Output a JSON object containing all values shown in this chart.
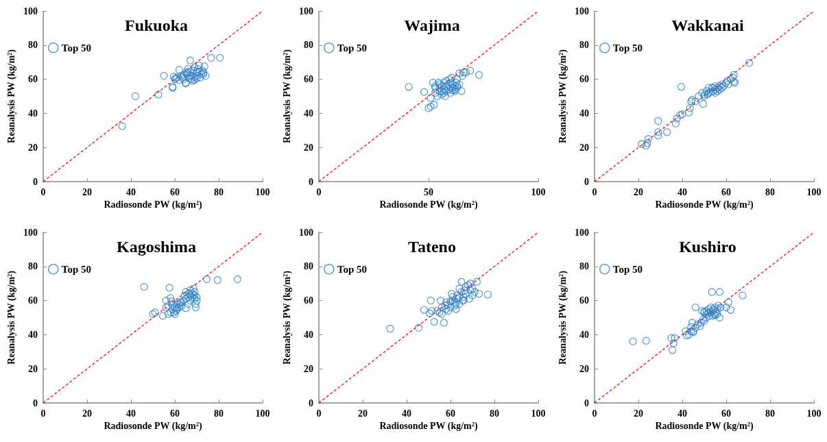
{
  "chart_data": [
    {
      "type": "scatter",
      "title": "Fukuoka",
      "xlabel": "Radiosonde PW (kg/m²)",
      "ylabel": "Reanalysis PW (kg/m²)",
      "xlim": [
        0,
        100
      ],
      "ylim": [
        0,
        100
      ],
      "xticks": [
        0,
        20,
        40,
        60,
        80,
        100
      ],
      "yticks": [
        0,
        20,
        40,
        60,
        80,
        100
      ],
      "legend": "top left",
      "marker": "circle",
      "series": [
        {
          "name": "Top 50",
          "color": "#2e7fc6",
          "x": [
            36,
            42,
            52.5,
            55,
            59,
            59,
            59.5,
            60,
            61,
            62,
            63,
            64,
            65,
            65,
            65.5,
            66,
            67,
            67,
            67.5,
            68,
            68.5,
            69,
            69,
            70,
            70,
            70.5,
            71,
            71.5,
            72,
            73,
            73,
            73.5,
            74,
            76.5,
            80.5,
            66,
            64,
            62,
            69,
            71,
            68,
            66.5,
            72.5,
            70,
            67,
            63.5,
            65,
            60.5
          ],
          "values": [
            32.5,
            50,
            51,
            62,
            55,
            55.5,
            61.5,
            60,
            61,
            65.5,
            62,
            62.5,
            58,
            57.5,
            63,
            64,
            71,
            62,
            60,
            59,
            65,
            61,
            59.5,
            62,
            64,
            66,
            68,
            61,
            63,
            64,
            63,
            67.5,
            62,
            72.5,
            72.5,
            66,
            60,
            59.5,
            67,
            64.5,
            62,
            60.5,
            65,
            60.5,
            64.5,
            61,
            64,
            60.5
          ]
        },
        {
          "type": "line",
          "color": "#ff0000",
          "line_style": "dashed",
          "marker": "none",
          "x": [
            0,
            100
          ],
          "values": [
            0,
            100
          ]
        }
      ]
    },
    {
      "type": "scatter",
      "title": "Wajima",
      "xlabel": "Radiosonde PW (kg/m²)",
      "ylabel": "Reanalysis PW (kg/m²)",
      "xlim": [
        0,
        100
      ],
      "ylim": [
        0,
        100
      ],
      "xticks": [
        0,
        50,
        100
      ],
      "yticks": [
        0,
        20,
        40,
        60,
        80,
        100
      ],
      "legend": "top left",
      "marker": "circle",
      "series": [
        {
          "name": "Top 50",
          "color": "#2e7fc6",
          "x": [
            41,
            48,
            50,
            51,
            51,
            52,
            52.5,
            53,
            53,
            54,
            54.5,
            55,
            55,
            56,
            56,
            57,
            57,
            57.5,
            58,
            58,
            59,
            59,
            60,
            60,
            60.5,
            61,
            61,
            62,
            62,
            62.5,
            63,
            63,
            64,
            64,
            65,
            65.5,
            66,
            67,
            69,
            73,
            56,
            58,
            59.5,
            57,
            55,
            53,
            61,
            62,
            63,
            60
          ],
          "values": [
            55.5,
            52.5,
            43,
            44,
            49,
            58,
            45,
            55,
            52,
            50,
            58,
            53,
            55,
            51,
            56,
            54,
            58,
            50,
            56,
            59,
            54,
            57,
            52,
            55,
            61,
            57,
            55,
            56,
            54,
            58,
            55,
            60,
            63.5,
            57,
            53,
            62,
            64,
            64,
            65,
            62.5,
            53,
            53,
            60,
            52,
            57,
            56,
            53.5,
            53,
            56,
            58
          ]
        },
        {
          "type": "line",
          "color": "#ff0000",
          "line_style": "dashed",
          "marker": "none",
          "x": [
            0,
            100
          ],
          "values": [
            0,
            100
          ]
        }
      ]
    },
    {
      "type": "scatter",
      "title": "Wakkanai",
      "xlabel": "Radiosonde PW (kg/m²)",
      "ylabel": "Reanalysis PW (kg/m²)",
      "xlim": [
        0,
        100
      ],
      "ylim": [
        0,
        100
      ],
      "xticks": [
        0,
        20,
        40,
        60,
        80,
        100
      ],
      "yticks": [
        0,
        20,
        40,
        60,
        80,
        100
      ],
      "legend": "top left",
      "marker": "circle",
      "series": [
        {
          "name": "Top 50",
          "color": "#2e7fc6",
          "x": [
            21.5,
            23.5,
            24,
            24.5,
            29,
            29,
            29,
            33,
            37,
            37.5,
            39,
            40,
            39.5,
            43,
            43.5,
            44,
            44.5,
            46,
            47.5,
            49,
            49.5,
            50,
            51,
            51.5,
            52,
            53,
            53.5,
            54,
            54,
            55,
            55,
            56,
            56,
            57,
            57,
            58,
            59,
            60,
            60.5,
            62,
            63,
            63.5,
            63.5,
            64,
            70.5,
            52,
            55,
            50,
            58,
            61
          ],
          "values": [
            22,
            21,
            22.5,
            25,
            27,
            29,
            35.5,
            29,
            34,
            37,
            39,
            39.5,
            55.5,
            40.5,
            43,
            47,
            48,
            47,
            50,
            52,
            45.5,
            51,
            53,
            51,
            52,
            52.5,
            55,
            53,
            55,
            54,
            56,
            55,
            53,
            54,
            56,
            57,
            56,
            58,
            59,
            60,
            61,
            62.5,
            58.5,
            58,
            69.5,
            55,
            52,
            50,
            55,
            57
          ]
        },
        {
          "type": "line",
          "color": "#ff0000",
          "line_style": "dashed",
          "marker": "none",
          "x": [
            0,
            100
          ],
          "values": [
            0,
            100
          ]
        }
      ]
    },
    {
      "type": "scatter",
      "title": "Kagoshima",
      "xlabel": "Radiosonde PW (kg/m²)",
      "ylabel": "Reanalysis PW (kg/m²)",
      "xlim": [
        0,
        100
      ],
      "ylim": [
        0,
        100
      ],
      "xticks": [
        0,
        20,
        40,
        60,
        80,
        100
      ],
      "yticks": [
        0,
        20,
        40,
        60,
        80,
        100
      ],
      "legend": "top left",
      "marker": "circle",
      "series": [
        {
          "name": "Top 50",
          "color": "#2e7fc6",
          "x": [
            46,
            50,
            51,
            54.5,
            56,
            56,
            57,
            57.5,
            58,
            58.5,
            59,
            59.5,
            60,
            60.5,
            61,
            61,
            62,
            62.5,
            63,
            64,
            64.5,
            65,
            65,
            66,
            66.5,
            67,
            67,
            68,
            68,
            68.5,
            69,
            69,
            69.5,
            70,
            70,
            69.5,
            74.5,
            79.5,
            88.5,
            59,
            60,
            62,
            58,
            66,
            67,
            69,
            63,
            61,
            57,
            65
          ],
          "values": [
            68,
            52,
            53,
            51,
            60,
            56,
            52,
            67.5,
            61.5,
            59.5,
            55,
            53,
            52,
            54,
            56,
            58,
            58,
            59,
            57,
            60,
            63,
            65,
            55.5,
            62,
            64,
            60,
            66,
            62,
            64,
            67,
            63,
            65,
            58,
            60,
            62,
            56,
            72.5,
            72,
            72.5,
            58,
            56,
            56,
            53,
            58,
            63,
            61,
            59,
            55,
            57,
            61
          ]
        },
        {
          "type": "line",
          "color": "#ff0000",
          "line_style": "dashed",
          "marker": "none",
          "x": [
            0,
            100
          ],
          "values": [
            0,
            100
          ]
        }
      ]
    },
    {
      "type": "scatter",
      "title": "Tateno",
      "xlabel": "Radiosonde PW (kg/m²)",
      "ylabel": "Reanalysis PW (kg/m²)",
      "xlim": [
        0,
        100
      ],
      "ylim": [
        0,
        100
      ],
      "xticks": [
        0,
        20,
        40,
        60,
        80,
        100
      ],
      "yticks": [
        0,
        20,
        40,
        60,
        80,
        100
      ],
      "legend": "top left",
      "marker": "circle",
      "series": [
        {
          "name": "Top 50",
          "color": "#2e7fc6",
          "x": [
            32.5,
            45.5,
            48,
            50.5,
            51,
            51.5,
            52.5,
            54,
            55,
            55.5,
            56,
            56,
            57,
            57.5,
            58,
            58,
            58.5,
            59,
            60,
            60.5,
            61,
            61,
            62,
            62,
            62.5,
            63,
            63,
            64,
            64,
            64,
            65,
            65,
            65.5,
            66,
            66.5,
            67,
            68,
            68.5,
            69,
            69,
            70,
            70,
            71,
            72,
            73,
            77,
            66,
            60,
            62.5,
            67
          ],
          "values": [
            43.5,
            44,
            54.5,
            52.5,
            60,
            54,
            47.5,
            54,
            53,
            60,
            56,
            52,
            47,
            57,
            59,
            55,
            57.5,
            54,
            59.5,
            64,
            62,
            60,
            59,
            57,
            55,
            63,
            61,
            62,
            58,
            67,
            71,
            65,
            60,
            62,
            66,
            68,
            69,
            61,
            70,
            66,
            63,
            67,
            65,
            71,
            64,
            63.5,
            60,
            56,
            58,
            64
          ]
        },
        {
          "type": "line",
          "color": "#ff0000",
          "line_style": "dashed",
          "marker": "none",
          "x": [
            0,
            100
          ],
          "values": [
            0,
            100
          ]
        }
      ]
    },
    {
      "type": "scatter",
      "title": "Kushiro",
      "xlabel": "Radiosonde PW (kg/m²)",
      "ylabel": "Reanalysis PW (kg/m²)",
      "xlim": [
        0,
        100
      ],
      "ylim": [
        0,
        100
      ],
      "xticks": [
        0,
        20,
        40,
        60,
        80,
        100
      ],
      "yticks": [
        0,
        20,
        40,
        60,
        80,
        100
      ],
      "legend": "top left",
      "marker": "circle",
      "series": [
        {
          "name": "Top 50",
          "color": "#2e7fc6",
          "x": [
            17.5,
            23.5,
            35,
            35.5,
            36,
            36.5,
            41.5,
            42,
            43,
            44,
            44.5,
            45,
            45,
            46,
            47,
            48.5,
            49,
            49.5,
            50,
            50,
            51,
            51,
            52,
            52.5,
            53,
            53.5,
            54,
            54,
            54.5,
            55,
            55.5,
            56,
            56.5,
            57,
            57,
            57.5,
            60,
            61,
            62,
            67.5,
            53,
            55,
            51,
            48,
            56,
            54,
            52,
            46,
            44,
            50
          ],
          "values": [
            36,
            36.5,
            38,
            31,
            35,
            38,
            42,
            39.5,
            40,
            44.5,
            47,
            42,
            41.5,
            56,
            46,
            47,
            54,
            49,
            48,
            53,
            54,
            52,
            55,
            51,
            53,
            65,
            55,
            54,
            52,
            56,
            53,
            55,
            57,
            50,
            65,
            56,
            56,
            59,
            54.5,
            63,
            56,
            51.5,
            50,
            45,
            52,
            51,
            53,
            44,
            42,
            53.5
          ]
        },
        {
          "type": "line",
          "color": "#ff0000",
          "line_style": "dashed",
          "marker": "none",
          "x": [
            0,
            100
          ],
          "values": [
            0,
            100
          ]
        }
      ]
    }
  ]
}
